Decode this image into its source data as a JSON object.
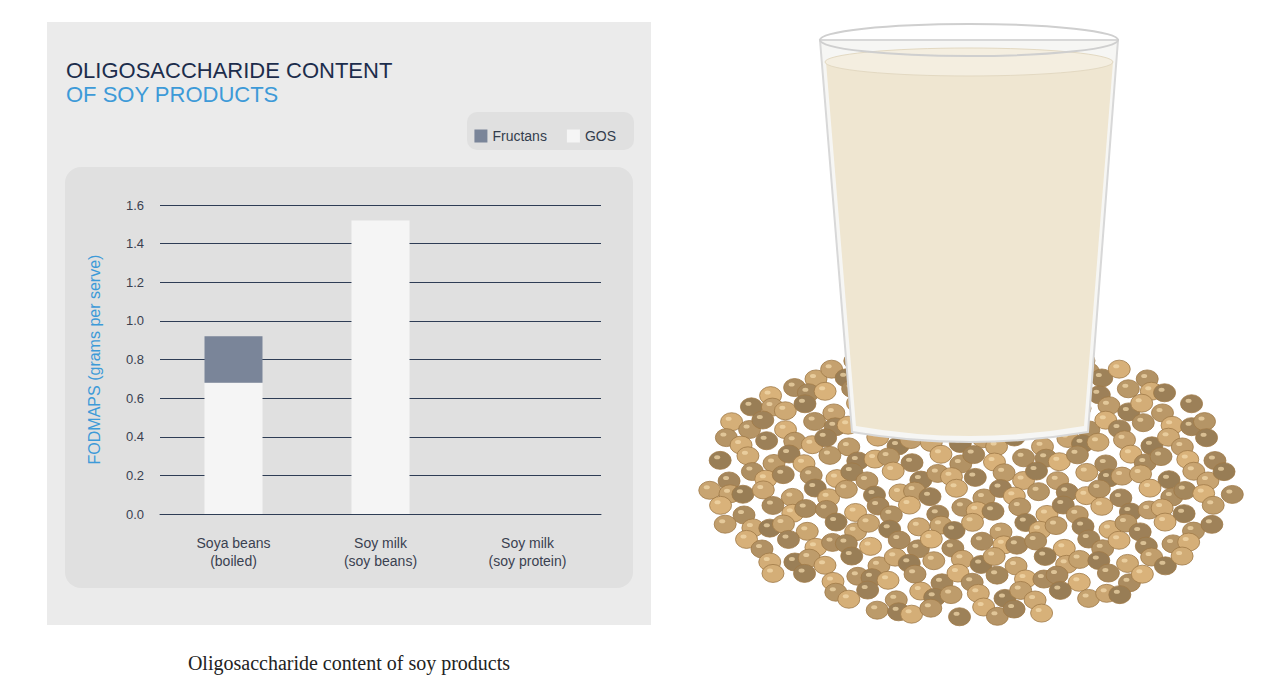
{
  "chart_data": {
    "type": "bar",
    "title": "OLIGOSACCHARIDE CONTENT",
    "subtitle": "OF SOY PRODUCTS",
    "caption": "Oligosaccharide content of soy products",
    "y_label": "FODMAPS (grams per serve)",
    "categories": [
      "Soya beans\n(boiled)",
      "Soy milk\n(soy beans)",
      "Soy milk\n(soy protein)"
    ],
    "series": [
      {
        "name": "GOS",
        "color": "#f5f5f5",
        "values": [
          0.68,
          1.52,
          0
        ]
      },
      {
        "name": "Fructans",
        "color": "#7a8599",
        "values": [
          0.24,
          0,
          0
        ]
      }
    ],
    "ylim": [
      0,
      1.6
    ],
    "yticks": [
      {
        "value": 0,
        "label": "0.0"
      },
      0.2,
      0.4,
      0.6,
      0.8,
      {
        "value": 1,
        "label": "1.0"
      },
      1.2,
      1.4,
      1.6
    ],
    "grid": true,
    "stacked": true,
    "legend": "upper right",
    "data_labels": false
  }
}
